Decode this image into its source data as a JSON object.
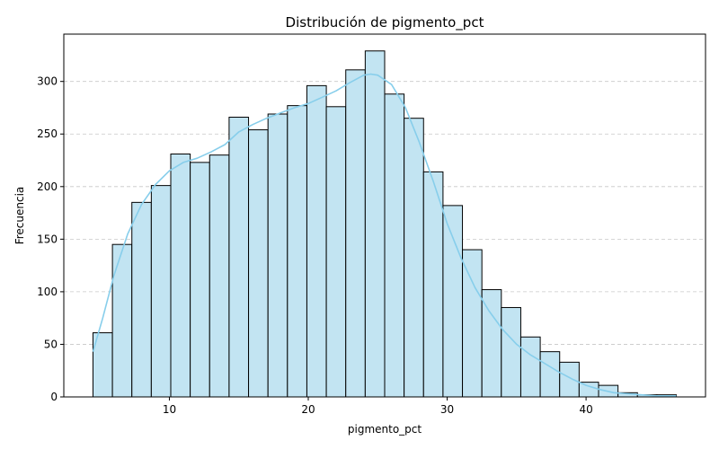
{
  "chart_data": {
    "type": "bar",
    "subtype": "histogram",
    "title": "Distribución de pigmento_pct",
    "xlabel": "pigmento_pct",
    "ylabel": "Frecuencia",
    "xlim": [
      2.4,
      48.6
    ],
    "ylim": [
      0,
      345
    ],
    "xticks": [
      10,
      20,
      30,
      40
    ],
    "yticks": [
      0,
      50,
      100,
      150,
      200,
      250,
      300
    ],
    "grid": "y-dashed",
    "bar_color": "#c2e4f2",
    "edge_color": "#000000",
    "kde_color": "#87ceeb",
    "bins": [
      {
        "x0": 4.5,
        "x1": 5.9,
        "count": 61
      },
      {
        "x0": 5.9,
        "x1": 7.3,
        "count": 145
      },
      {
        "x0": 7.3,
        "x1": 8.7,
        "count": 185
      },
      {
        "x0": 8.7,
        "x1": 10.1,
        "count": 201
      },
      {
        "x0": 10.1,
        "x1": 11.5,
        "count": 231
      },
      {
        "x0": 11.5,
        "x1": 12.9,
        "count": 223
      },
      {
        "x0": 12.9,
        "x1": 14.3,
        "count": 230
      },
      {
        "x0": 14.3,
        "x1": 15.7,
        "count": 266
      },
      {
        "x0": 15.7,
        "x1": 17.1,
        "count": 254
      },
      {
        "x0": 17.1,
        "x1": 18.5,
        "count": 269
      },
      {
        "x0": 18.5,
        "x1": 19.9,
        "count": 277
      },
      {
        "x0": 19.9,
        "x1": 21.3,
        "count": 296
      },
      {
        "x0": 21.3,
        "x1": 22.7,
        "count": 276
      },
      {
        "x0": 22.7,
        "x1": 24.1,
        "count": 311
      },
      {
        "x0": 24.1,
        "x1": 25.5,
        "count": 329
      },
      {
        "x0": 25.5,
        "x1": 26.9,
        "count": 288
      },
      {
        "x0": 26.9,
        "x1": 28.3,
        "count": 265
      },
      {
        "x0": 28.3,
        "x1": 29.7,
        "count": 214
      },
      {
        "x0": 29.7,
        "x1": 31.1,
        "count": 182
      },
      {
        "x0": 31.1,
        "x1": 32.5,
        "count": 140
      },
      {
        "x0": 32.5,
        "x1": 33.9,
        "count": 102
      },
      {
        "x0": 33.9,
        "x1": 35.3,
        "count": 85
      },
      {
        "x0": 35.3,
        "x1": 36.7,
        "count": 57
      },
      {
        "x0": 36.7,
        "x1": 38.1,
        "count": 43
      },
      {
        "x0": 38.1,
        "x1": 39.5,
        "count": 33
      },
      {
        "x0": 39.5,
        "x1": 40.9,
        "count": 14
      },
      {
        "x0": 40.9,
        "x1": 42.3,
        "count": 11
      },
      {
        "x0": 42.3,
        "x1": 43.7,
        "count": 4
      },
      {
        "x0": 43.7,
        "x1": 45.1,
        "count": 2
      },
      {
        "x0": 45.1,
        "x1": 46.5,
        "count": 2
      }
    ],
    "kde": {
      "x": [
        4.5,
        5.2,
        6.0,
        7.0,
        8.0,
        9.0,
        10.0,
        11.0,
        12.0,
        13.0,
        14.0,
        15.0,
        16.0,
        17.0,
        18.0,
        19.0,
        20.0,
        21.0,
        22.0,
        23.0,
        24.0,
        24.5,
        25.0,
        26.0,
        27.0,
        28.0,
        29.0,
        30.0,
        31.0,
        32.0,
        33.0,
        34.0,
        35.0,
        36.0,
        37.0,
        38.0,
        39.0,
        40.0,
        41.0,
        42.0,
        43.0,
        44.0,
        45.0,
        46.5
      ],
      "y": [
        43,
        75,
        115,
        155,
        183,
        202,
        215,
        223,
        227,
        233,
        240,
        252,
        259,
        265,
        270,
        275,
        279,
        285,
        291,
        299,
        306,
        307,
        306,
        297,
        275,
        242,
        205,
        165,
        132,
        104,
        82,
        64,
        50,
        40,
        32,
        24,
        17,
        11,
        7,
        4,
        3,
        2,
        1,
        1
      ]
    }
  }
}
